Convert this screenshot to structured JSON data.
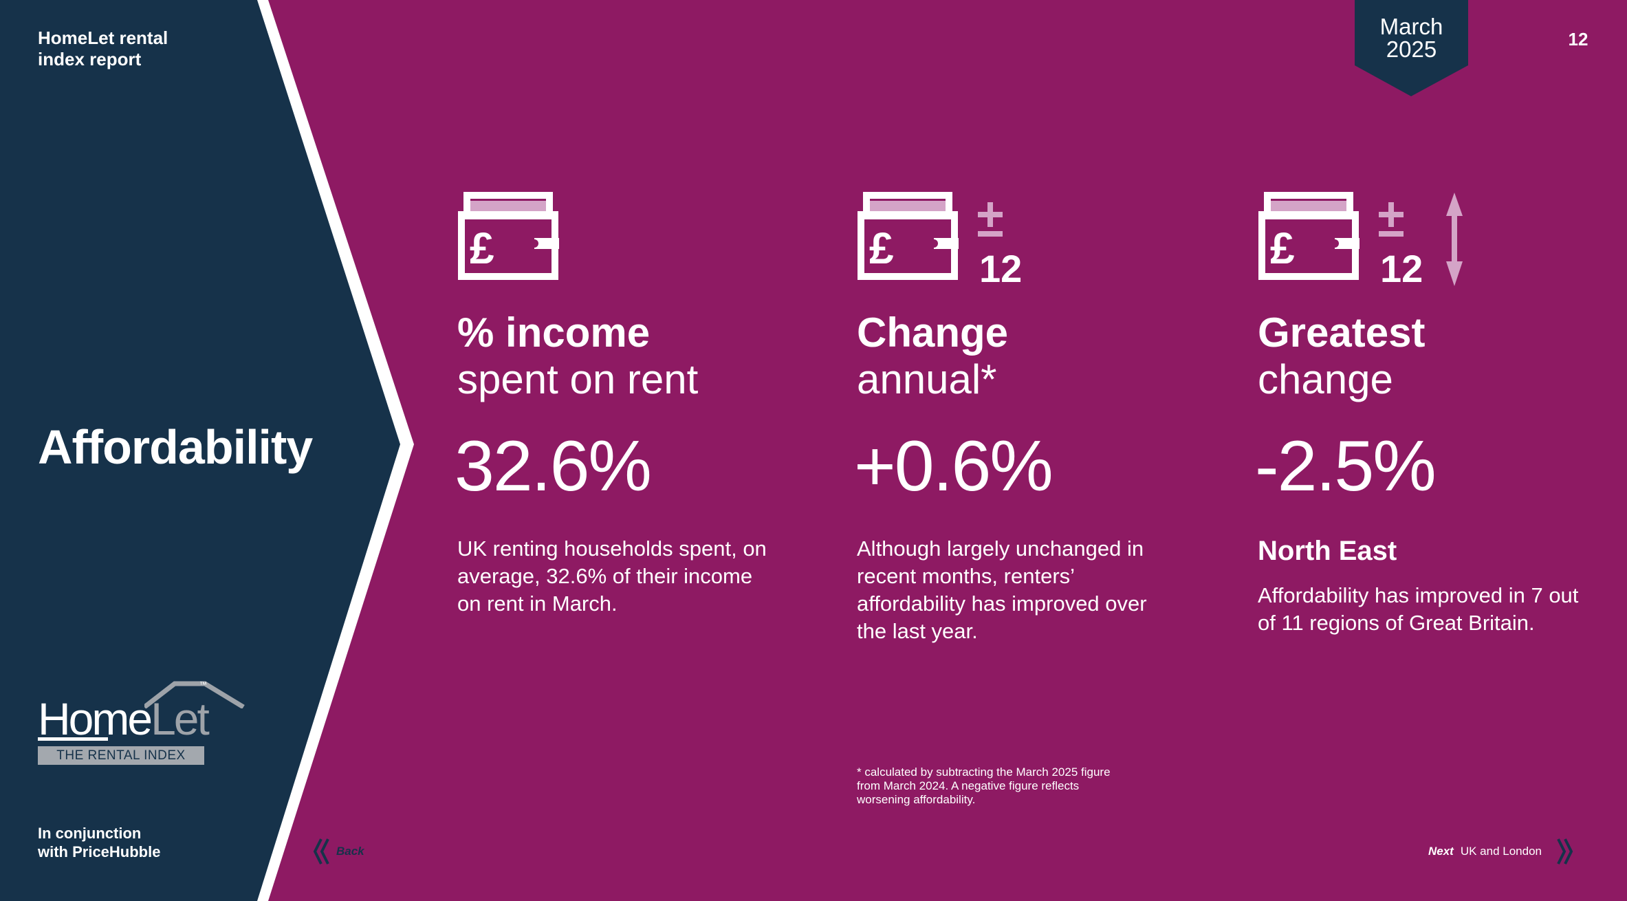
{
  "header": {
    "report_title": "HomeLet rental index report",
    "date_line1": "March",
    "date_line2": "2025",
    "page_number": "12"
  },
  "sidebar": {
    "section_title": "Affordability",
    "logo": {
      "word_home": "Home",
      "word_let": "Let",
      "tagline": "THE RENTAL INDEX",
      "tm": "™"
    },
    "partner_line1": "In conjunction",
    "partner_line2": "with PriceHubble"
  },
  "metrics": [
    {
      "icon": "wallet-pound-icon",
      "heading_bold": "% income",
      "heading_light": "spent on rent",
      "value": "32.6%",
      "description": "UK renting households spent, on average, 32.6% of their income on rent in March."
    },
    {
      "icon": "wallet-pound-plus-minus-12-icon",
      "icon_badge": "12",
      "heading_bold": "Change",
      "heading_light": "annual*",
      "value": "+0.6%",
      "description": "Although largely unchanged in recent months, renters’ affordability has improved over the last year."
    },
    {
      "icon": "wallet-pound-plus-minus-12-arrow-icon",
      "icon_badge": "12",
      "heading_bold": "Greatest",
      "heading_light": "change",
      "value": "-2.5%",
      "region": "North East",
      "description": "Affordability has improved in 7 out of 11 regions of Great Britain."
    }
  ],
  "footnote": "* calculated by subtracting the March 2025 figure from March 2024. A negative figure reflects worsening affordability.",
  "navigation": {
    "back_label": "Back",
    "next_label": "Next",
    "next_destination": "UK and London"
  },
  "colors": {
    "background": "#8e1a63",
    "sidebar": "#16324a",
    "accent_light": "#d4a4c7",
    "white": "#ffffff"
  }
}
